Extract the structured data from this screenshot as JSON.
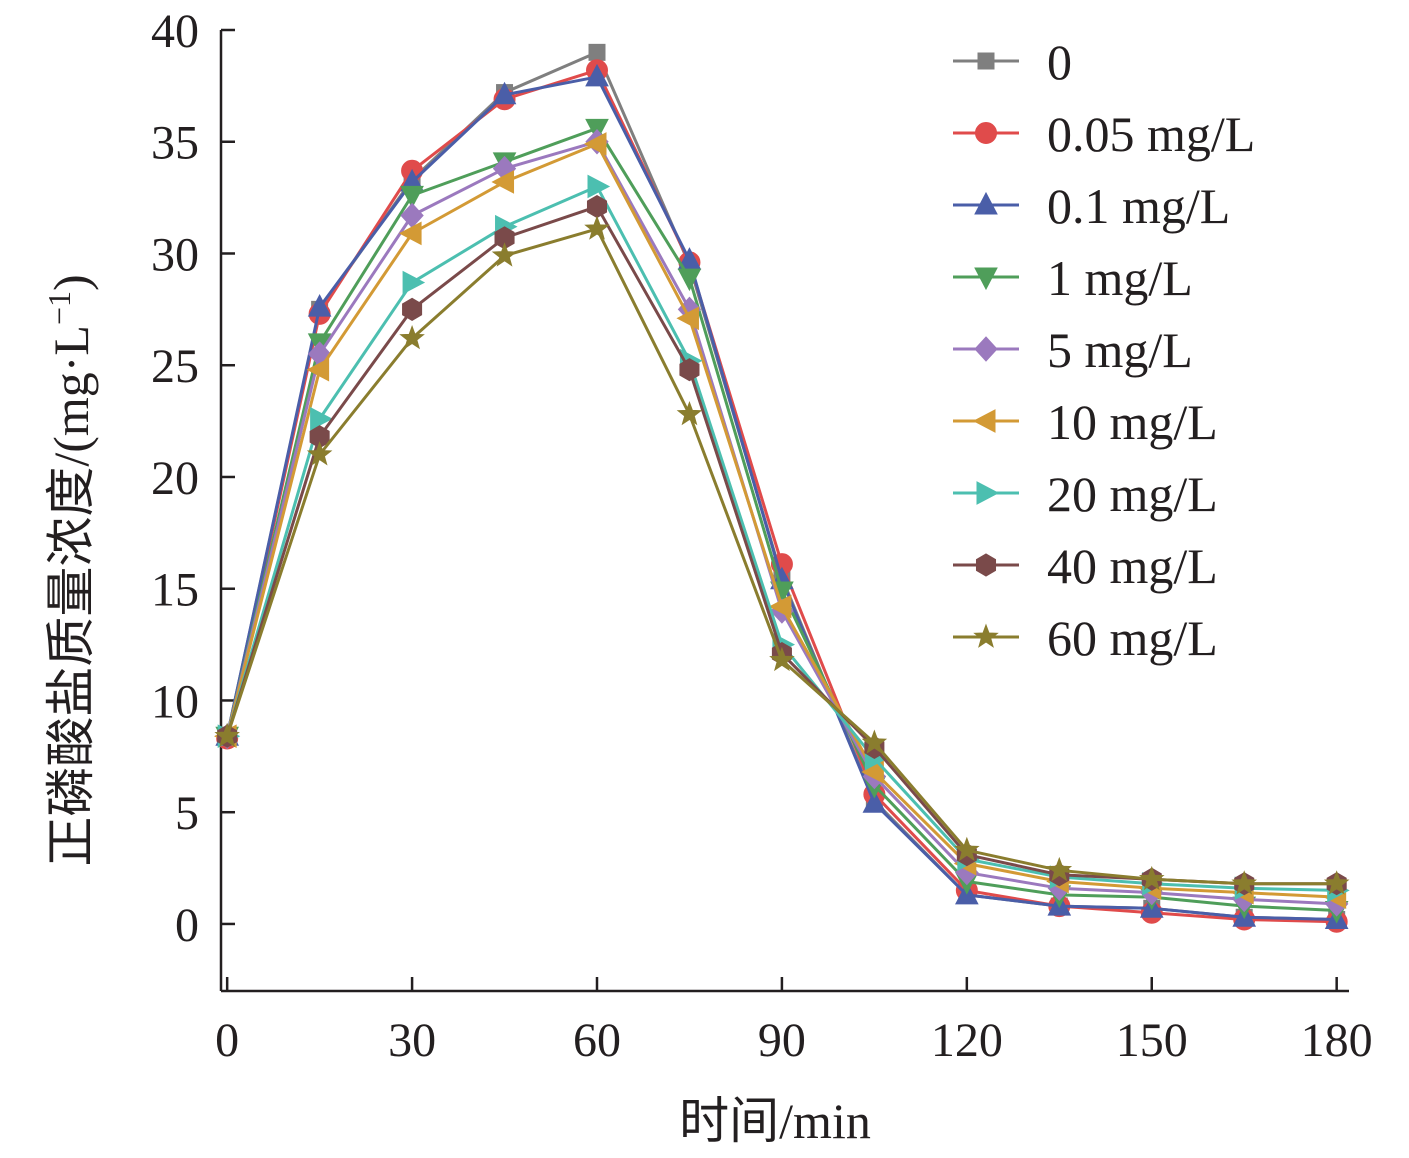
{
  "chart_data": {
    "type": "line",
    "xlabel": "时间/min",
    "ylabel": "正磷酸盐质量浓度/(mg·L",
    "ylabel_sup": "−1",
    "ylabel_close": ")",
    "xlim": [
      -1,
      182
    ],
    "ylim": [
      -3,
      40
    ],
    "xticks": [
      0,
      30,
      60,
      90,
      120,
      150,
      180
    ],
    "yticks": [
      0,
      5,
      10,
      15,
      20,
      25,
      30,
      35,
      40
    ],
    "grid": false,
    "legend_position": "top-right",
    "x": [
      0,
      15,
      30,
      45,
      60,
      75,
      90,
      105,
      120,
      135,
      150,
      165,
      180
    ],
    "series": [
      {
        "name": "0",
        "color": "#7f7f7f",
        "marker": "square",
        "values": [
          8.4,
          27.5,
          33.3,
          37.2,
          39.0,
          29.5,
          15.5,
          5.5,
          1.3,
          0.8,
          0.7,
          0.3,
          0.2
        ]
      },
      {
        "name": "0.05 mg/L",
        "color": "#e04b4b",
        "marker": "circle",
        "values": [
          8.3,
          27.3,
          33.7,
          36.9,
          38.2,
          29.6,
          16.1,
          5.8,
          1.5,
          0.8,
          0.5,
          0.2,
          0.1
        ]
      },
      {
        "name": "0.1 mg/L",
        "color": "#4a5ea8",
        "marker": "triangle-up",
        "values": [
          8.4,
          27.6,
          33.2,
          37.1,
          37.9,
          29.7,
          15.4,
          5.4,
          1.3,
          0.8,
          0.7,
          0.3,
          0.2
        ]
      },
      {
        "name": "1 mg/L",
        "color": "#4f9e5a",
        "marker": "triangle-down",
        "values": [
          8.4,
          26.0,
          32.6,
          34.1,
          35.6,
          28.9,
          14.9,
          6.2,
          1.9,
          1.3,
          1.2,
          0.8,
          0.6
        ]
      },
      {
        "name": "5 mg/L",
        "color": "#9b79be",
        "marker": "diamond",
        "values": [
          8.4,
          25.5,
          31.7,
          33.8,
          35.0,
          27.5,
          14.0,
          6.6,
          2.3,
          1.6,
          1.4,
          1.1,
          0.9
        ]
      },
      {
        "name": "10 mg/L",
        "color": "#d39a35",
        "marker": "triangle-left",
        "values": [
          8.4,
          24.8,
          30.9,
          33.2,
          34.9,
          27.1,
          14.2,
          6.8,
          2.7,
          1.9,
          1.6,
          1.4,
          1.2
        ]
      },
      {
        "name": "20 mg/L",
        "color": "#4cbfb0",
        "marker": "triangle-right",
        "values": [
          8.4,
          22.6,
          28.7,
          31.2,
          33.0,
          25.2,
          12.5,
          7.4,
          2.9,
          2.1,
          1.8,
          1.6,
          1.5
        ]
      },
      {
        "name": "40 mg/L",
        "color": "#7a4a4a",
        "marker": "hexagon",
        "values": [
          8.4,
          21.8,
          27.5,
          30.7,
          32.1,
          24.8,
          12.1,
          7.9,
          3.1,
          2.2,
          2.0,
          1.8,
          1.8
        ]
      },
      {
        "name": "60 mg/L",
        "color": "#8a7d2e",
        "marker": "star",
        "values": [
          8.4,
          21.0,
          26.2,
          29.9,
          31.1,
          22.8,
          11.8,
          8.1,
          3.3,
          2.4,
          2.0,
          1.8,
          1.8
        ]
      }
    ]
  }
}
